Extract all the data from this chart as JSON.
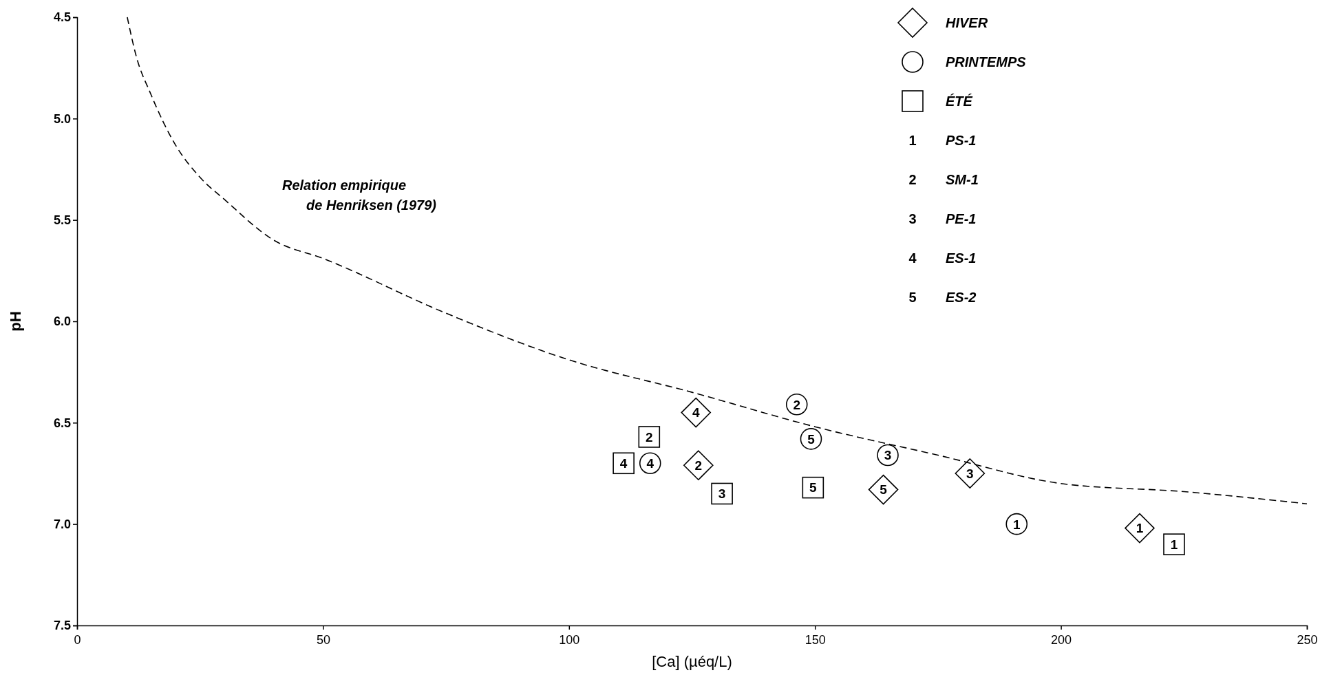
{
  "chart_data": {
    "type": "scatter",
    "xlabel": "[Ca] (µéq/L)",
    "ylabel": "pH",
    "xlim": [
      0,
      250
    ],
    "xticks": [
      0,
      50,
      100,
      150,
      200,
      250
    ],
    "ylim": [
      7.5,
      4.5
    ],
    "yticks": [
      4.5,
      {
        "value": 5,
        "label": "5.0"
      },
      5.5,
      {
        "value": 6,
        "label": "6.0"
      },
      6.5,
      {
        "value": 7,
        "label": "7.0"
      },
      7.5
    ],
    "grid": false,
    "legend": "top right",
    "series": [
      {
        "name": "HIVER",
        "type": "scatter",
        "marker": "diamond",
        "color": "#000000",
        "x": [
          125.8,
          126.3,
          181.5,
          163.9,
          216
        ],
        "values": [
          6.45,
          6.71,
          6.75,
          6.83,
          7.02
        ]
      },
      {
        "name": "PRINTEMPS",
        "type": "scatter",
        "marker": "circle",
        "color": "#000000",
        "x": [
          146.3,
          149.2,
          164.8,
          116.5,
          191
        ],
        "values": [
          6.41,
          6.58,
          6.66,
          6.7,
          7.0
        ]
      },
      {
        "name": "ÉTÉ",
        "type": "scatter",
        "marker": "square",
        "color": "#000000",
        "x": [
          116.3,
          111.1,
          131.1,
          149.6,
          223
        ],
        "values": [
          6.57,
          6.7,
          6.85,
          6.82,
          7.1
        ]
      },
      {
        "type": "line",
        "marker": "none",
        "line_style": "dashed",
        "color": "#000000",
        "x": [
          10.2,
          12,
          15,
          20,
          25,
          30,
          40,
          50,
          75,
          100,
          125,
          150,
          175,
          200,
          225,
          250
        ],
        "values": [
          4.5,
          4.69,
          4.88,
          5.13,
          5.29,
          5.4,
          5.6,
          5.69,
          5.96,
          6.19,
          6.35,
          6.52,
          6.66,
          6.8,
          6.84,
          6.9
        ]
      }
    ],
    "annotations": [
      "Relation empirique\nde Henriksen (1979)",
      "1",
      "PS-1",
      "2",
      "SM-1",
      "3",
      "PE-1",
      "4",
      "ES-1",
      "5",
      "ES-2",
      {
        "text": "4",
        "x": 125.8,
        "y": 6.45
      },
      {
        "text": "2",
        "x": 126.3,
        "y": 6.71
      },
      {
        "text": "3",
        "x": 181.5,
        "y": 6.75
      },
      {
        "text": "5",
        "x": 163.9,
        "y": 6.83
      },
      {
        "text": "1",
        "x": 216,
        "y": 7.02
      },
      {
        "text": "2",
        "x": 146.3,
        "y": 6.41
      },
      {
        "text": "5",
        "x": 149.2,
        "y": 6.58
      },
      {
        "text": "3",
        "x": 164.8,
        "y": 6.66
      },
      {
        "text": "4",
        "x": 116.5,
        "y": 6.7
      },
      {
        "text": "1",
        "x": 191,
        "y": 7.0
      },
      {
        "text": "2",
        "x": 116.3,
        "y": 6.57
      },
      {
        "text": "4",
        "x": 111.1,
        "y": 6.7
      },
      {
        "text": "3",
        "x": 131.1,
        "y": 6.85
      },
      {
        "text": "5",
        "x": 149.6,
        "y": 6.82
      },
      {
        "text": "1",
        "x": 223,
        "y": 7.1
      }
    ]
  }
}
